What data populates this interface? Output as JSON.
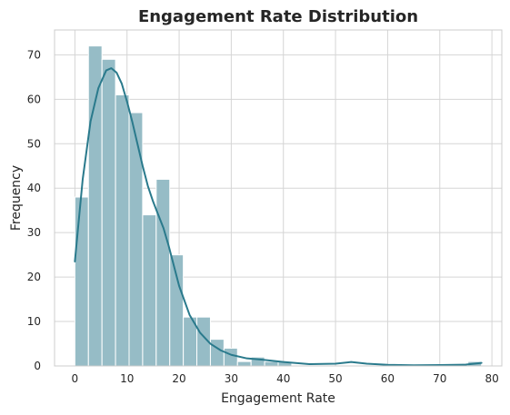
{
  "chart_data": {
    "type": "bar",
    "title": "Engagement Rate Distribution",
    "xlabel": "Engagement Rate",
    "ylabel": "Frequency",
    "xlim": [
      -3.9,
      81.9
    ],
    "ylim": [
      0,
      75.6
    ],
    "xticks": [
      0,
      10,
      20,
      30,
      40,
      50,
      60,
      70,
      80
    ],
    "yticks": [
      0,
      10,
      20,
      30,
      40,
      50,
      60,
      70
    ],
    "grid": true,
    "bins": {
      "start": 0,
      "width": 2.6,
      "counts": [
        38,
        72,
        69,
        61,
        57,
        34,
        42,
        25,
        11,
        11,
        6,
        4,
        1,
        2,
        1,
        1,
        0,
        0,
        0,
        0,
        0,
        0,
        0,
        0,
        0,
        0,
        0,
        0,
        0,
        1
      ]
    },
    "kde": {
      "x": [
        0,
        1.5,
        3,
        4.5,
        6,
        7,
        8,
        9,
        10,
        11,
        12,
        13,
        14,
        15,
        16,
        17,
        18,
        19,
        20,
        22,
        24,
        26,
        28,
        30,
        33,
        36,
        40,
        45,
        50,
        53,
        56,
        60,
        65,
        70,
        75,
        78
      ],
      "y": [
        23.5,
        42,
        55,
        62.5,
        66.5,
        67,
        66,
        63.5,
        59.5,
        55,
        50,
        45,
        40.5,
        37,
        34,
        31,
        27,
        22.5,
        18,
        11.5,
        7.5,
        5,
        3.5,
        2.5,
        1.7,
        1.4,
        0.9,
        0.4,
        0.5,
        0.9,
        0.5,
        0.25,
        0.15,
        0.2,
        0.3,
        0.7
      ]
    },
    "colors": {
      "bar_fill": "#96bcc6",
      "bar_edge": "#ffffff",
      "kde_line": "#2a7a8c",
      "grid": "#d5d5d5",
      "frame": "#cccccc"
    }
  }
}
